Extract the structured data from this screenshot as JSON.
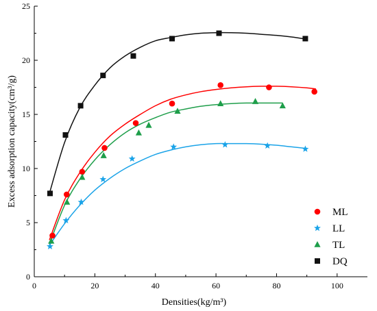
{
  "chart_data": {
    "type": "scatter",
    "xlabel": "Densities(kg/m³)",
    "ylabel": "Excess adsorption capacity(cm³/g)",
    "xlim": [
      0,
      110
    ],
    "ylim": [
      0,
      25
    ],
    "x_ticks": [
      0,
      20,
      40,
      60,
      80,
      100
    ],
    "y_ticks": [
      0,
      5,
      10,
      15,
      20,
      25
    ],
    "grid": false,
    "legend_position": "bottom-right",
    "series": [
      {
        "name": "ML",
        "marker": "circle",
        "color": "#ff0000",
        "x": [
          6.0,
          10.7,
          15.8,
          23.2,
          33.5,
          45.5,
          61.5,
          77.5,
          92.5
        ],
        "y": [
          3.8,
          7.6,
          9.7,
          11.9,
          14.2,
          16.0,
          17.7,
          17.5,
          17.1
        ],
        "fit_x": [
          5,
          10,
          15,
          20,
          25,
          30,
          35,
          40,
          45,
          50,
          55,
          60,
          65,
          70,
          75,
          80,
          85,
          90,
          93
        ],
        "fit_y": [
          3.4,
          7.1,
          9.6,
          11.5,
          13.0,
          14.1,
          15.0,
          15.8,
          16.4,
          16.8,
          17.1,
          17.3,
          17.45,
          17.55,
          17.6,
          17.6,
          17.55,
          17.45,
          17.35
        ]
      },
      {
        "name": "LL",
        "marker": "star",
        "color": "#1aa3e8",
        "x": [
          5.2,
          10.5,
          15.5,
          22.7,
          32.3,
          46.0,
          63.0,
          77.0,
          89.5
        ],
        "y": [
          2.8,
          5.2,
          6.9,
          9.0,
          10.9,
          12.0,
          12.2,
          12.1,
          11.8
        ],
        "fit_x": [
          5,
          10,
          15,
          20,
          25,
          30,
          35,
          40,
          45,
          50,
          55,
          60,
          65,
          70,
          75,
          80,
          85,
          90
        ],
        "fit_y": [
          2.9,
          4.9,
          6.6,
          8.0,
          9.1,
          10.0,
          10.7,
          11.3,
          11.7,
          12.0,
          12.2,
          12.3,
          12.3,
          12.3,
          12.25,
          12.15,
          12.0,
          11.85
        ]
      },
      {
        "name": "TL",
        "marker": "triangle",
        "color": "#1e9e4a",
        "x": [
          5.6,
          10.8,
          15.8,
          22.9,
          34.5,
          37.8,
          47.3,
          61.5,
          73.0,
          82.0
        ],
        "y": [
          3.3,
          6.9,
          9.2,
          11.2,
          13.3,
          14.0,
          15.3,
          16.0,
          16.2,
          15.8
        ],
        "fit_x": [
          5,
          10,
          15,
          20,
          25,
          30,
          35,
          40,
          45,
          50,
          55,
          60,
          65,
          70,
          75,
          82
        ],
        "fit_y": [
          3.0,
          6.6,
          9.0,
          10.8,
          12.2,
          13.3,
          14.1,
          14.7,
          15.2,
          15.5,
          15.75,
          15.9,
          16.0,
          16.05,
          16.05,
          16.05
        ]
      },
      {
        "name": "DQ",
        "marker": "square",
        "color": "#111111",
        "x": [
          5.2,
          10.3,
          15.3,
          22.7,
          32.7,
          45.5,
          61.0,
          89.5
        ],
        "y": [
          7.7,
          13.1,
          15.8,
          18.6,
          20.4,
          22.0,
          22.5,
          22.0
        ],
        "fit_x": [
          5,
          10,
          15,
          20,
          25,
          30,
          35,
          40,
          45,
          50,
          55,
          60,
          65,
          70,
          75,
          80,
          85,
          90
        ],
        "fit_y": [
          7.7,
          12.4,
          15.6,
          17.7,
          19.3,
          20.4,
          21.2,
          21.8,
          22.1,
          22.35,
          22.5,
          22.55,
          22.55,
          22.5,
          22.4,
          22.3,
          22.15,
          21.95
        ]
      }
    ]
  }
}
